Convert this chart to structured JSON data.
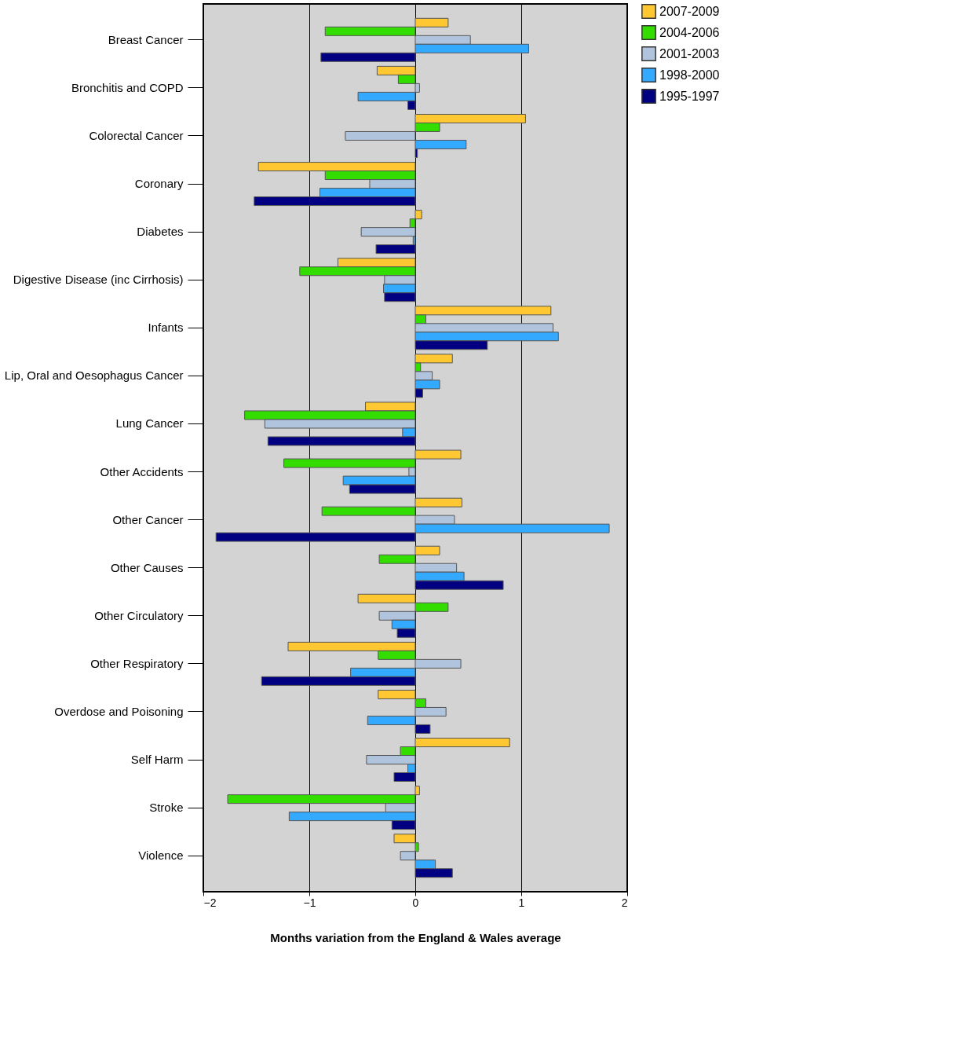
{
  "chart_data": {
    "type": "bar",
    "orientation": "horizontal",
    "xlabel": "Months variation from the England & Wales average",
    "categories": [
      "Breast Cancer",
      "Bronchitis and COPD",
      "Colorectal Cancer",
      "Coronary",
      "Diabetes",
      "Digestive Disease (inc Cirrhosis)",
      "Infants",
      "Lip, Oral and Oesophagus Cancer",
      "Lung Cancer",
      "Other Accidents",
      "Other Cancer",
      "Other Causes",
      "Other Circulatory",
      "Other Respiratory",
      "Overdose and Poisoning",
      "Self Harm",
      "Stroke",
      "Violence"
    ],
    "series": [
      {
        "name": "2007-2009",
        "color": "#ffc832",
        "values": [
          0.31,
          -0.36,
          1.04,
          -1.48,
          0.06,
          -0.73,
          1.28,
          0.35,
          -0.47,
          0.43,
          0.44,
          0.23,
          -0.54,
          -1.2,
          -0.35,
          0.89,
          0.04,
          -0.2
        ]
      },
      {
        "name": "2004-2006",
        "color": "#33dd00",
        "values": [
          -0.85,
          -0.16,
          0.23,
          -0.85,
          -0.05,
          -1.09,
          0.1,
          0.05,
          -1.61,
          -1.24,
          -0.88,
          -0.34,
          0.31,
          -0.35,
          0.1,
          -0.14,
          -1.77,
          0.03
        ]
      },
      {
        "name": "2001-2003",
        "color": "#b0c4de",
        "values": [
          0.52,
          0.04,
          -0.66,
          -0.43,
          -0.51,
          -0.29,
          1.3,
          0.16,
          -1.42,
          -0.06,
          0.37,
          0.39,
          -0.34,
          0.43,
          0.29,
          -0.46,
          -0.28,
          -0.14
        ]
      },
      {
        "name": "1998-2000",
        "color": "#33aaff",
        "values": [
          1.07,
          -0.54,
          0.48,
          -0.9,
          -0.02,
          -0.3,
          1.35,
          0.23,
          -0.12,
          -0.68,
          1.83,
          0.46,
          -0.22,
          -0.61,
          -0.45,
          -0.07,
          -1.19,
          0.19
        ]
      },
      {
        "name": "1995-1997",
        "color": "#000080",
        "values": [
          -0.89,
          -0.07,
          0.02,
          -1.52,
          -0.37,
          -0.29,
          0.68,
          0.07,
          -1.39,
          -0.62,
          -1.88,
          0.83,
          -0.17,
          -1.45,
          0.14,
          -0.2,
          -0.22,
          0.35
        ]
      }
    ],
    "xlim": [
      -2,
      2
    ],
    "xticks": [
      -2,
      -1,
      0,
      1,
      2
    ],
    "grid": "x",
    "legend": "top right"
  }
}
